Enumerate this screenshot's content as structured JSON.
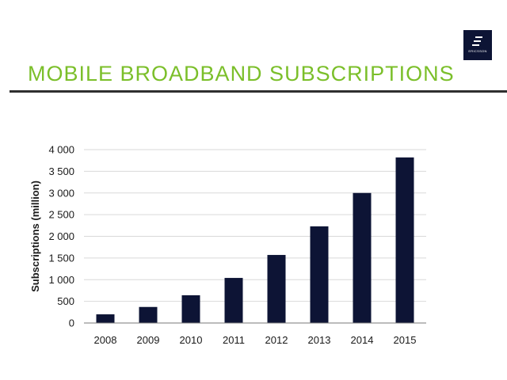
{
  "header": {
    "title": "MOBILE BROADBAND SUBSCRIPTIONS",
    "logo_text": "ERICSSON",
    "title_color": "#7bbf2a",
    "logo_color": "#0d1435"
  },
  "chart_data": {
    "type": "bar",
    "categories": [
      "2008",
      "2009",
      "2010",
      "2011",
      "2012",
      "2013",
      "2014",
      "2015"
    ],
    "values": [
      200,
      370,
      640,
      1040,
      1570,
      2230,
      3000,
      3820
    ],
    "title": "",
    "xlabel": "",
    "ylabel": "Subscriptions (million)",
    "ylim": [
      0,
      4000
    ],
    "yticks": [
      0,
      500,
      1000,
      1500,
      2000,
      2500,
      3000,
      3500,
      4000
    ],
    "ytick_labels": [
      "0",
      "500",
      "1 000",
      "1 500",
      "2 000",
      "2 500",
      "3 000",
      "3 500",
      "4 000"
    ],
    "grid": true,
    "legend": "none",
    "bar_color": "#0d1435"
  }
}
